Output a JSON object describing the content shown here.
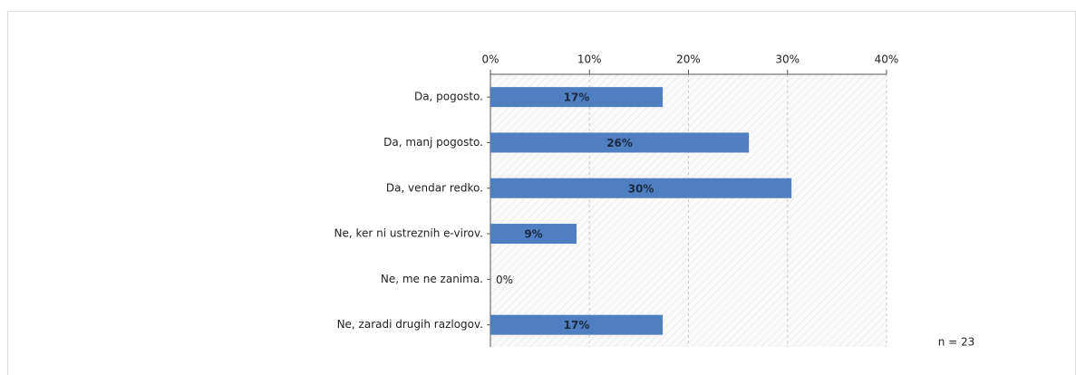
{
  "chart_data": {
    "type": "bar",
    "orientation": "horizontal",
    "categories": [
      "Da, pogosto.",
      "Da, manj pogosto.",
      "Da, vendar redko.",
      "Ne, ker ni ustreznih e-virov.",
      "Ne, me ne zanima.",
      "Ne, zaradi drugih razlogov."
    ],
    "values": [
      17.4,
      26.1,
      30.4,
      8.7,
      0,
      17.4
    ],
    "value_labels": [
      "17%",
      "26%",
      "30%",
      "9%",
      "0%",
      "17%"
    ],
    "color": "#4f7fc0",
    "xlim": [
      0,
      40
    ],
    "xticks": [
      {
        "value": 0,
        "label": "0%"
      },
      {
        "value": 10,
        "label": "10%"
      },
      {
        "value": 20,
        "label": "20%"
      },
      {
        "value": 30,
        "label": "30%"
      },
      {
        "value": 40,
        "label": "40%"
      }
    ],
    "grid": true,
    "annotation": "n = 23"
  }
}
